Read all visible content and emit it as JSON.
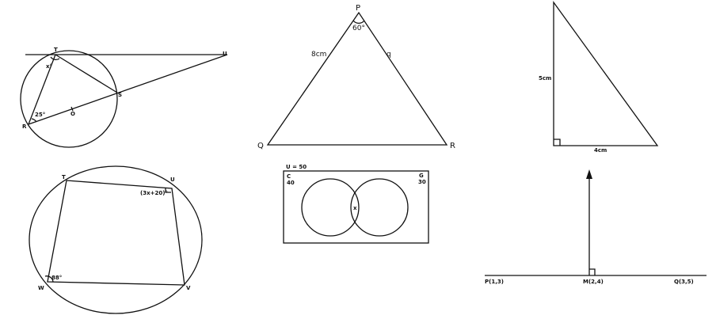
{
  "fig1": {
    "T": "T",
    "U": "U",
    "S": "S",
    "R": "R",
    "O": "O",
    "angle_T": "x°",
    "angle_R": "25°"
  },
  "fig2": {
    "P": "P",
    "Q": "Q",
    "R": "R",
    "angle_P": "60°",
    "side_PQ": "8cm",
    "side_PR": "q"
  },
  "fig3": {
    "height": "5cm",
    "base": "4cm"
  },
  "fig4": {
    "T": "T",
    "U": "U",
    "V": "V",
    "W": "W",
    "angle_U": "(3x+20)°",
    "angle_W": "88°"
  },
  "fig5": {
    "universe": "U = 50",
    "set_c_name": "C",
    "set_c_value": "40",
    "set_g_name": "G",
    "set_g_value": "30",
    "intersection": "x"
  },
  "fig6": {
    "P": "P(1,3)",
    "M": "M(2,4)",
    "Q": "Q(3,5)"
  }
}
